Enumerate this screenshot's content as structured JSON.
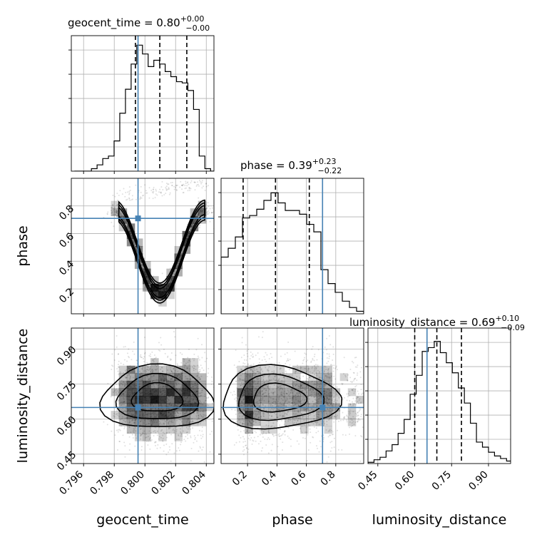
{
  "chart_data": {
    "type": "corner",
    "parameters": [
      "geocent_time",
      "phase",
      "luminosity_distance"
    ],
    "truths": {
      "geocent_time": 0.79955,
      "phase": 0.71,
      "luminosity_distance": 0.65
    },
    "grid": true,
    "panels": {
      "geocent_time": {
        "title": "geocent_time = 0.80",
        "title_plus": "+0.00",
        "title_minus": "−0.00",
        "xlim": [
          0.7952,
          0.8045
        ],
        "quantiles": [
          0.79938,
          0.80097,
          0.80273
        ],
        "bin_width": 0.00037,
        "hist_x": [
          0.7954,
          0.79577,
          0.79614,
          0.79651,
          0.79688,
          0.79725,
          0.79762,
          0.79799,
          0.79836,
          0.79873,
          0.7991,
          0.79947,
          0.79984,
          0.80021,
          0.80058,
          0.80095,
          0.80132,
          0.80169,
          0.80206,
          0.80243,
          0.8028,
          0.80317,
          0.80354,
          0.80391,
          0.80428
        ],
        "hist_y": [
          0,
          0,
          0,
          0.02,
          0.05,
          0.1,
          0.12,
          0.24,
          0.46,
          0.65,
          0.85,
          1.0,
          0.93,
          0.83,
          0.88,
          0.85,
          0.79,
          0.75,
          0.71,
          0.7,
          0.64,
          0.49,
          0.12,
          0.02,
          0
        ],
        "xticks": [
          "0.796",
          "0.798",
          "0.800",
          "0.802",
          "0.804"
        ],
        "xtick_values": [
          0.796,
          0.798,
          0.8,
          0.802,
          0.804
        ],
        "xlabel": "geocent_time"
      },
      "phase": {
        "title": "phase = 0.39",
        "title_plus": "+0.23",
        "title_minus": "−0.22",
        "xlim": [
          0.02,
          0.99
        ],
        "quantiles": [
          0.17,
          0.39,
          0.62
        ],
        "bin_width": 0.0485,
        "hist_x": [
          0.02,
          0.0685,
          0.117,
          0.1655,
          0.214,
          0.2625,
          0.311,
          0.3595,
          0.408,
          0.4565,
          0.505,
          0.5535,
          0.602,
          0.6505,
          0.699,
          0.7475,
          0.796,
          0.8445,
          0.893,
          0.9415
        ],
        "hist_y": [
          0.45,
          0.52,
          0.61,
          0.76,
          0.78,
          0.83,
          0.9,
          0.96,
          0.88,
          0.82,
          0.82,
          0.79,
          0.71,
          0.65,
          0.35,
          0.24,
          0.17,
          0.1,
          0.05,
          0.02
        ],
        "xticks": [
          "0.2",
          "0.4",
          "0.6",
          "0.8"
        ],
        "xtick_values": [
          0.2,
          0.4,
          0.6,
          0.8
        ],
        "xlabel": "phase"
      },
      "luminosity_distance": {
        "title": "luminosity_distance = 0.69",
        "title_plus": "+0.10",
        "title_minus": "−0.09",
        "xlim": [
          0.41,
          0.99
        ],
        "quantiles": [
          0.6,
          0.69,
          0.79
        ],
        "bin_width": 0.0245,
        "hist_x": [
          0.41,
          0.4345,
          0.459,
          0.4835,
          0.508,
          0.5325,
          0.557,
          0.5815,
          0.606,
          0.6305,
          0.655,
          0.6795,
          0.704,
          0.7285,
          0.753,
          0.7775,
          0.802,
          0.8265,
          0.851,
          0.8755,
          0.9,
          0.9245,
          0.949,
          0.9735
        ],
        "hist_y": [
          0.01,
          0.03,
          0.05,
          0.1,
          0.15,
          0.24,
          0.35,
          0.55,
          0.7,
          0.89,
          0.92,
          0.97,
          0.88,
          0.8,
          0.72,
          0.6,
          0.48,
          0.32,
          0.17,
          0.13,
          0.09,
          0.06,
          0.04,
          0.02
        ],
        "xticks": [
          "0.45",
          "0.60",
          "0.75",
          "0.90"
        ],
        "xtick_values": [
          0.45,
          0.6,
          0.75,
          0.9
        ],
        "xlabel": "luminosity_distance"
      }
    },
    "yaxes": {
      "phase": {
        "label": "phase",
        "ylim": [
          0.02,
          1.0
        ],
        "yticks": [
          "0.2",
          "0.4",
          "0.6",
          "0.8"
        ],
        "ytick_values": [
          0.2,
          0.4,
          0.6,
          0.8
        ]
      },
      "luminosity_distance": {
        "label": "luminosity_distance",
        "ylim": [
          0.41,
          0.99
        ],
        "yticks": [
          "0.45",
          "0.60",
          "0.75",
          "0.90"
        ],
        "ytick_values": [
          0.45,
          0.6,
          0.75,
          0.9
        ]
      }
    },
    "colors": {
      "truth": "#4682b4",
      "hist": "#000000",
      "grid": "#b0b0b0",
      "density": "#000000"
    }
  }
}
